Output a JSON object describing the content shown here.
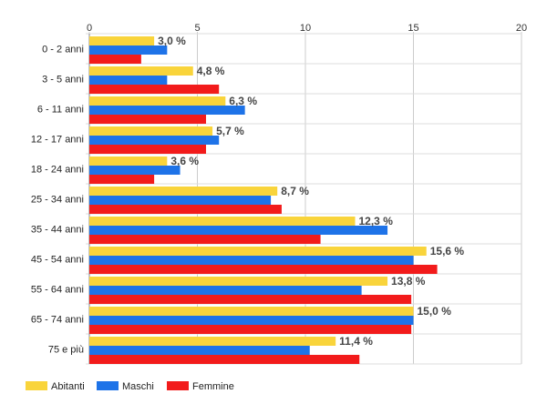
{
  "chart_data": {
    "type": "bar",
    "orientation": "horizontal",
    "categories": [
      "0 - 2 anni",
      "3 - 5 anni",
      "6 - 11 anni",
      "12 - 17 anni",
      "18 - 24 anni",
      "25 - 34 anni",
      "35 - 44 anni",
      "45 - 54 anni",
      "55 - 64 anni",
      "65 - 74 anni",
      "75 e più"
    ],
    "series": [
      {
        "name": "Abitanti",
        "color": "#f9d43b",
        "values": [
          3.0,
          4.8,
          6.3,
          5.7,
          3.6,
          8.7,
          12.3,
          15.6,
          13.8,
          15.0,
          11.4
        ]
      },
      {
        "name": "Maschi",
        "color": "#1e73e8",
        "values": [
          3.6,
          3.6,
          7.2,
          6.0,
          4.2,
          8.4,
          13.8,
          15.0,
          12.6,
          15.0,
          10.2
        ]
      },
      {
        "name": "Femmine",
        "color": "#f21b1b",
        "values": [
          2.4,
          6.0,
          5.4,
          5.4,
          3.0,
          8.9,
          10.7,
          16.1,
          14.9,
          14.9,
          12.5
        ]
      }
    ],
    "data_labels": [
      "3,0 %",
      "4,8 %",
      "6,3 %",
      "5,7 %",
      "3,6 %",
      "8,7 %",
      "12,3 %",
      "15,6 %",
      "13,8 %",
      "15,0 %",
      "11,4 %"
    ],
    "x_ticks": [
      "0",
      "5",
      "10",
      "15",
      "20"
    ],
    "xlim": [
      0,
      20
    ],
    "grid": true,
    "legend_position": "bottom-left",
    "title": "",
    "xlabel": "",
    "ylabel": ""
  }
}
